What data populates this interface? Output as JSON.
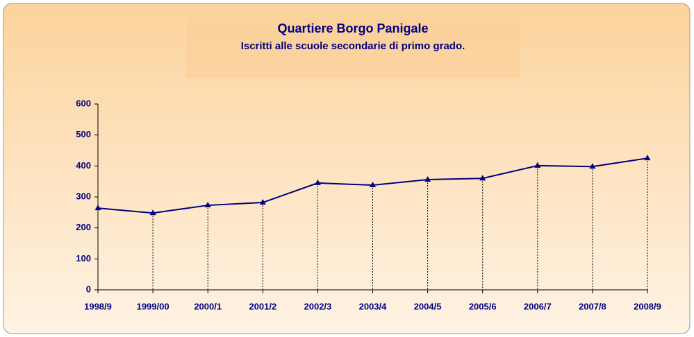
{
  "chart_data": {
    "type": "line",
    "title": "Quartiere Borgo Panigale",
    "subtitle": "Iscritti alle scuole secondarie di primo grado.",
    "categories": [
      "1998/9",
      "1999/00",
      "2000/1",
      "2001/2",
      "2002/3",
      "2003/4",
      "2004/5",
      "2005/6",
      "2006/7",
      "2007/8",
      "2008/9"
    ],
    "series": [
      {
        "name": "Iscritti",
        "color": "#000080",
        "values": [
          264,
          248,
          273,
          282,
          345,
          338,
          356,
          360,
          401,
          398,
          425
        ]
      }
    ],
    "ylim": [
      0,
      600
    ],
    "yticks": [
      0,
      100,
      200,
      300,
      400,
      500,
      600
    ],
    "drop_lines": true
  }
}
